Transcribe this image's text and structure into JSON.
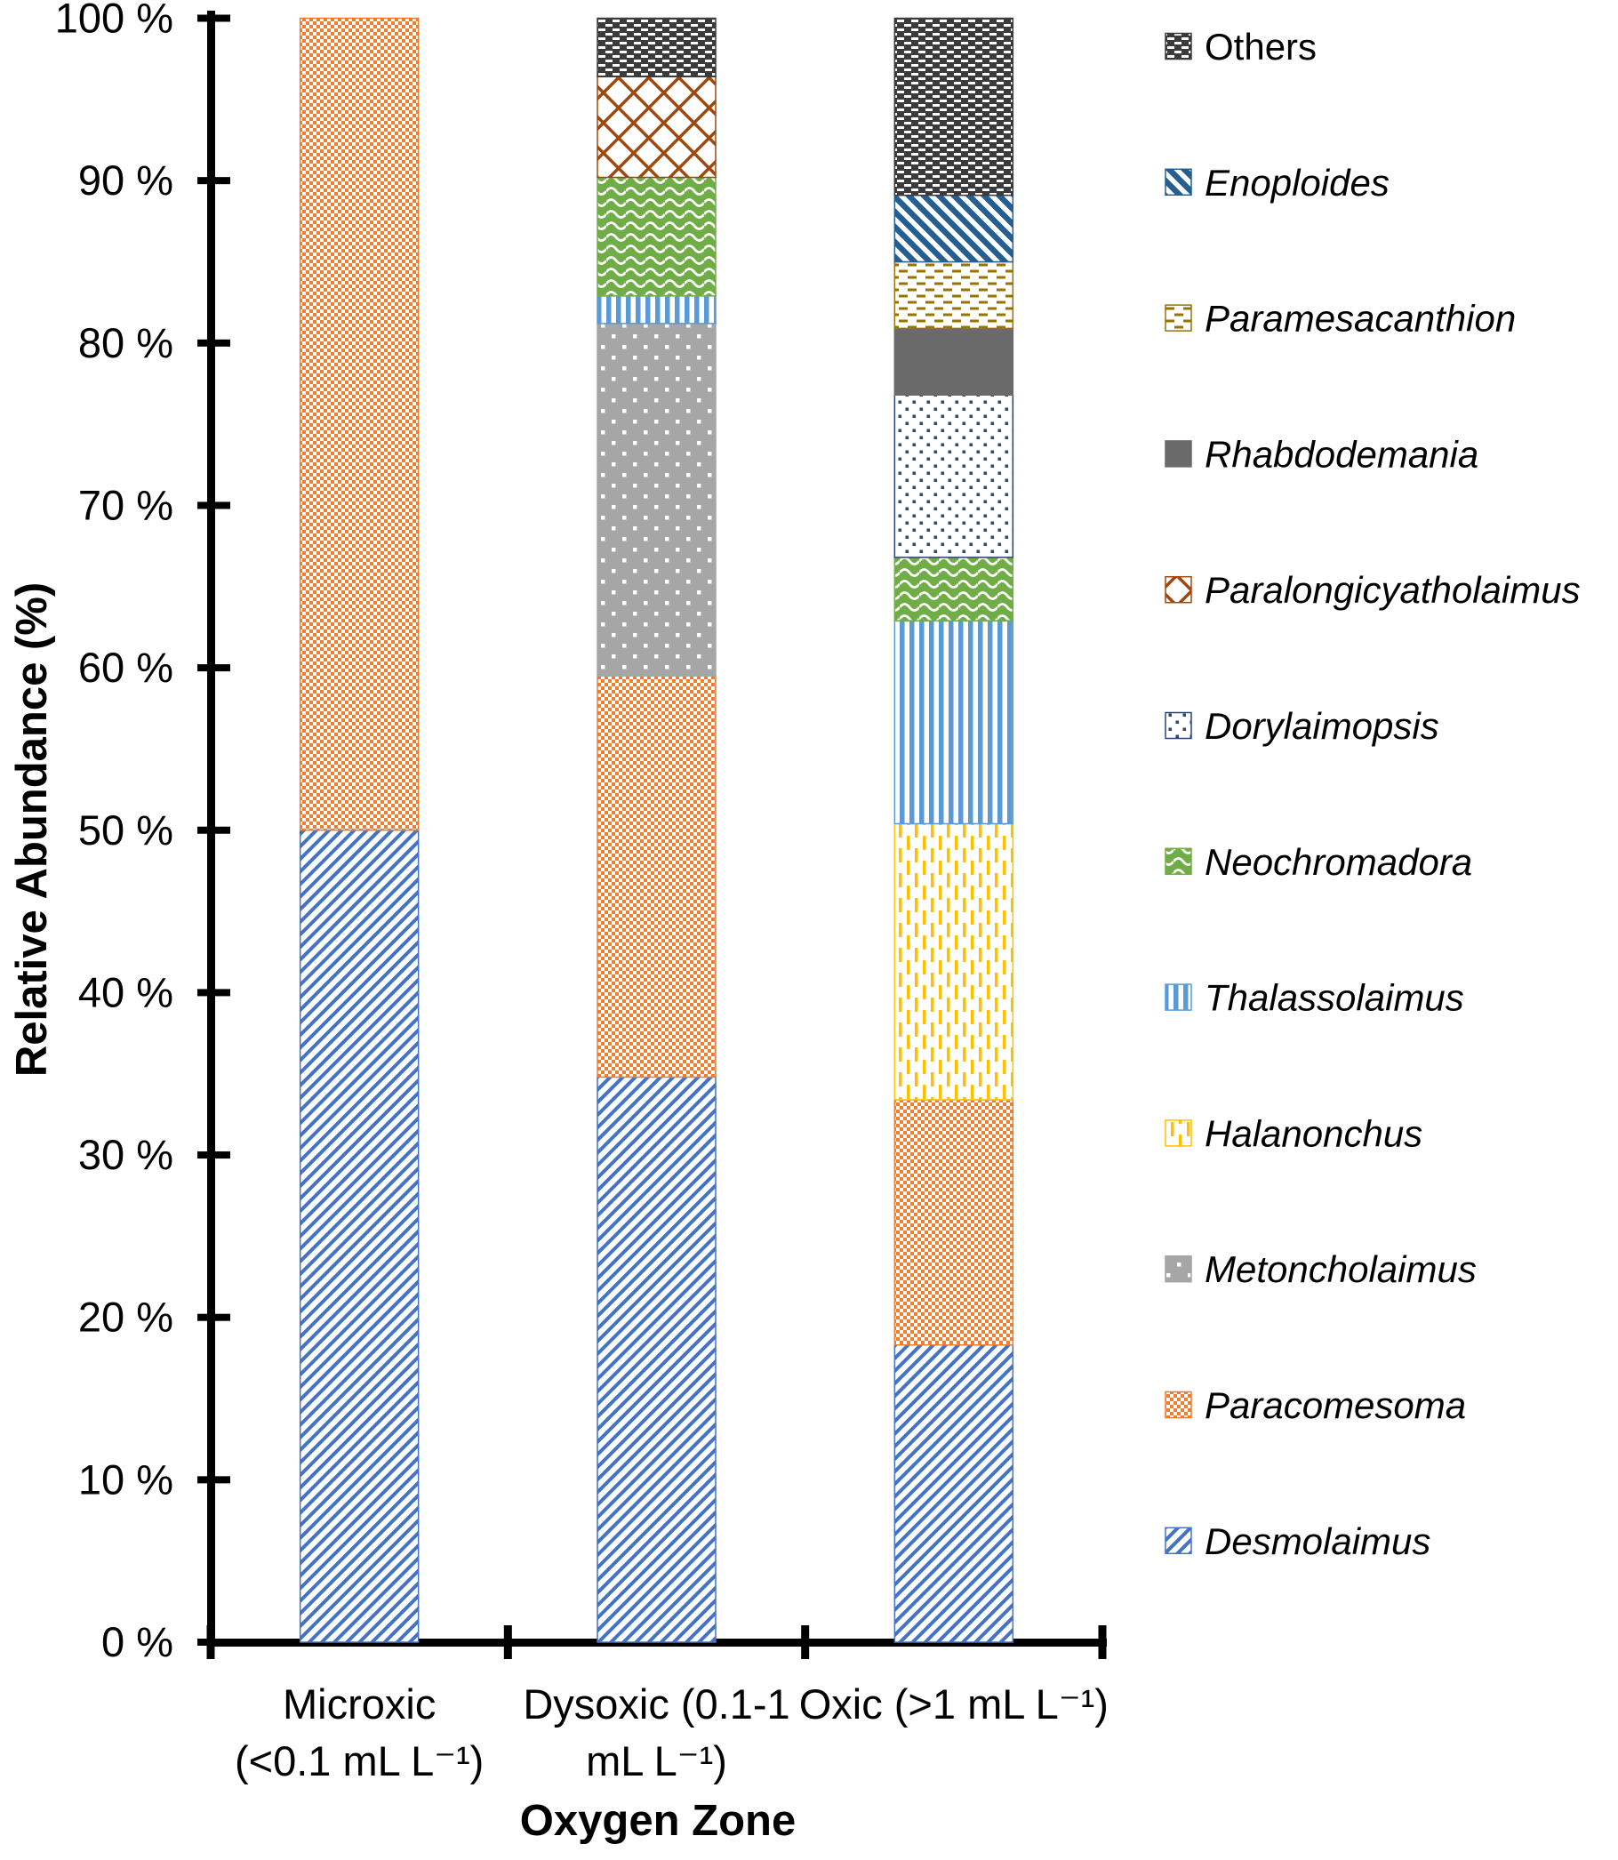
{
  "chart_data": {
    "type": "bar",
    "stacked": true,
    "orientation": "vertical",
    "title": "",
    "xlabel": "Oxygen Zone",
    "ylabel": "Relative Abundance (%)",
    "ylim": [
      0,
      100
    ],
    "grid": false,
    "legend_position": "right",
    "y_ticks": [
      {
        "value": 0,
        "label": "0 %"
      },
      {
        "value": 10,
        "label": "10 %"
      },
      {
        "value": 20,
        "label": "20 %"
      },
      {
        "value": 30,
        "label": "30 %"
      },
      {
        "value": 40,
        "label": "40 %"
      },
      {
        "value": 50,
        "label": "50 %"
      },
      {
        "value": 60,
        "label": "60 %"
      },
      {
        "value": 70,
        "label": "70 %"
      },
      {
        "value": 80,
        "label": "80 %"
      },
      {
        "value": 90,
        "label": "90 %"
      },
      {
        "value": 100,
        "label": "100 %"
      }
    ],
    "categories": [
      {
        "name": "Microxic (<0.1 mL L⁻¹)",
        "lines": [
          "Microxic",
          "(<0.1 mL L⁻¹)"
        ]
      },
      {
        "name": "Dysoxic (0.1-1 mL L⁻¹)",
        "lines": [
          "Dysoxic (0.1-1",
          "mL L⁻¹)"
        ]
      },
      {
        "name": "Oxic (>1 mL L⁻¹)",
        "lines": [
          "Oxic (>1 mL L⁻¹)"
        ]
      }
    ],
    "series": [
      {
        "name": "Others",
        "italic": false,
        "pattern": "brick-dash",
        "color": "#3B3B3B",
        "accent": "#FFFFFF",
        "values": [
          0,
          3.6,
          10.9
        ]
      },
      {
        "name": "Enoploides",
        "italic": true,
        "pattern": "diag-down",
        "color": "#255E91",
        "accent": "#FFFFFF",
        "values": [
          0,
          0,
          4.1
        ]
      },
      {
        "name": "Paramesacanthion",
        "italic": true,
        "pattern": "h-dash",
        "color": "#997300",
        "accent": "#FFFFFF",
        "values": [
          0,
          0,
          4.1
        ]
      },
      {
        "name": "Rhabdodemania",
        "italic": true,
        "pattern": "solid",
        "color": "#6A6A6A",
        "accent": "#6A6A6A",
        "values": [
          0,
          0,
          4.1
        ]
      },
      {
        "name": "Paralongicyatholaimus",
        "italic": true,
        "pattern": "lattice",
        "color": "#9E480E",
        "accent": "#FFFFFF",
        "values": [
          0,
          6.2,
          0
        ]
      },
      {
        "name": "Dorylaimopsis",
        "italic": true,
        "pattern": "sq-dots-white",
        "color": "#264478",
        "accent": "#FFFFFF",
        "values": [
          0,
          0,
          10.0
        ]
      },
      {
        "name": "Neochromadora",
        "italic": true,
        "pattern": "waves",
        "color": "#70AD47",
        "accent": "#FFFFFF",
        "values": [
          0,
          7.3,
          3.9
        ]
      },
      {
        "name": "Thalassolaimus",
        "italic": true,
        "pattern": "v-stripes",
        "color": "#5B9BD5",
        "accent": "#FFFFFF",
        "values": [
          0,
          1.7,
          12.5
        ]
      },
      {
        "name": "Halanonchus",
        "italic": true,
        "pattern": "v-dash",
        "color": "#FFC000",
        "accent": "#FFFFFF",
        "values": [
          0,
          0,
          17.0
        ]
      },
      {
        "name": "Metoncholaimus",
        "italic": true,
        "pattern": "sq-dots-gray",
        "color": "#A6A6A6",
        "accent": "#FFFFFF",
        "values": [
          0,
          21.7,
          0
        ]
      },
      {
        "name": "Paracomesoma",
        "italic": true,
        "pattern": "checker",
        "color": "#ED7D31",
        "accent": "#FFFFFF",
        "values": [
          50,
          24.7,
          15.1
        ]
      },
      {
        "name": "Desmolaimus",
        "italic": true,
        "pattern": "diag-up",
        "color": "#4472C4",
        "accent": "#FFFFFF",
        "values": [
          50,
          34.8,
          18.3
        ]
      }
    ]
  }
}
